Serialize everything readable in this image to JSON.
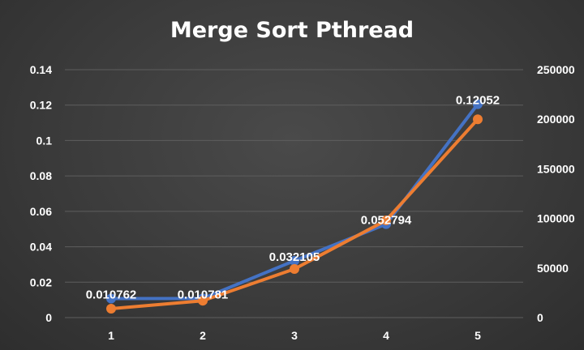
{
  "chart_data": {
    "type": "line",
    "title": "Merge Sort Pthread",
    "x": [
      1,
      2,
      3,
      4,
      5
    ],
    "series": [
      {
        "axis": "left",
        "color": "#4472C4",
        "values": [
          0.010762,
          0.010781,
          0.032105,
          0.052794,
          0.12052
        ]
      },
      {
        "axis": "right",
        "color": "#ED7D31",
        "values": [
          9000,
          17000,
          49000,
          98000,
          200000
        ]
      }
    ],
    "data_labels": [
      "0.010762",
      "0.010781",
      "0.032105",
      "0.052794",
      "0.12052"
    ],
    "y_left": {
      "ylim": [
        0,
        0.14
      ],
      "ticks": [
        "0",
        "0.02",
        "0.04",
        "0.06",
        "0.08",
        "0.1",
        "0.12",
        "0.14"
      ]
    },
    "y_right": {
      "ylim": [
        0,
        250000
      ],
      "ticks": [
        "0",
        "50000",
        "100000",
        "150000",
        "200000",
        "250000"
      ]
    },
    "x_ticks": [
      "1",
      "2",
      "3",
      "4",
      "5"
    ],
    "xlabel": "",
    "ylabel": "",
    "grid": true,
    "legend": "none"
  }
}
